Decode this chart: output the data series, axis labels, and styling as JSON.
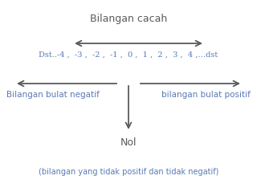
{
  "title": "Bilangan cacah",
  "title_color": "#5a5a5a",
  "number_line": "Dst..-4 ,  -3 ,  -2 ,  -1 ,  0 ,  1 ,  2 ,  3 ,  4 ,…dst",
  "number_line_color": "#5a7ab5",
  "label_left": "Bilangan bulat negatif",
  "label_right": "bilangan bulat positif",
  "label_lr_color": "#5a7ab5",
  "label_nol": "Nol",
  "label_nol_color": "#5a5a5a",
  "label_bottom": "(bilangan yang tidak positif dan tidak negatif)",
  "label_bottom_color": "#5a7ab5",
  "arrow_color": "#5a5a5a",
  "bg_color": "#ffffff"
}
